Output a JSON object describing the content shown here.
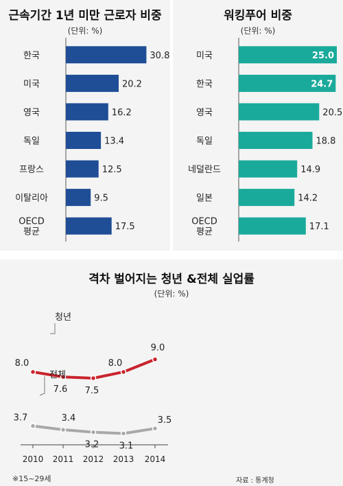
{
  "chart_data": [
    {
      "type": "bar",
      "title": "근속기간 1년 미만 근로자 비중",
      "unit": "(단위: %)",
      "categories": [
        [
          "한국"
        ],
        [
          "미국"
        ],
        [
          "영국"
        ],
        [
          "독일"
        ],
        [
          "프랑스"
        ],
        [
          "이탈리아"
        ],
        [
          "OECD",
          "평균"
        ]
      ],
      "values": [
        30.8,
        20.2,
        16.2,
        13.4,
        12.5,
        9.5,
        17.5
      ],
      "value_labels": [
        "30.8",
        "20.2",
        "16.2",
        "13.4",
        "12.5",
        "9.5",
        "17.5"
      ],
      "color": "#1f4e96",
      "xlim": [
        0,
        32
      ]
    },
    {
      "type": "bar",
      "title": "워킹푸어 비중",
      "unit": "(단위: %)",
      "categories": [
        [
          "미국"
        ],
        [
          "한국"
        ],
        [
          "영국"
        ],
        [
          "독일"
        ],
        [
          "네덜란드"
        ],
        [
          "일본"
        ],
        [
          "OECD",
          "평균"
        ]
      ],
      "values": [
        25.0,
        24.7,
        20.5,
        18.8,
        14.9,
        14.2,
        17.1
      ],
      "value_labels": [
        "25.0",
        "24.7",
        "20.5",
        "18.8",
        "14.9",
        "14.2",
        "17.1"
      ],
      "color": "#1aaa9b",
      "xlim": [
        0,
        25
      ]
    },
    {
      "type": "line",
      "title": "격차 벌어지는 청년 &전체 실업률",
      "unit": "(단위: %)",
      "x": [
        "2010",
        "2011",
        "2012",
        "2013",
        "2014"
      ],
      "series": [
        {
          "name": "청년",
          "values": [
            8.0,
            7.6,
            7.5,
            8.0,
            9.0
          ],
          "labels": [
            "8.0",
            "7.6",
            "7.5",
            "8.0",
            "9.0"
          ],
          "color": "#c8232b"
        },
        {
          "name": "전체",
          "values": [
            3.7,
            3.4,
            3.2,
            3.1,
            3.5
          ],
          "labels": [
            "3.7",
            "3.4",
            "3.2",
            "3.1",
            "3.5"
          ],
          "color": "#a8a8a8"
        }
      ],
      "footnote": "※15~29세",
      "source": "자료 : 통계청"
    }
  ]
}
